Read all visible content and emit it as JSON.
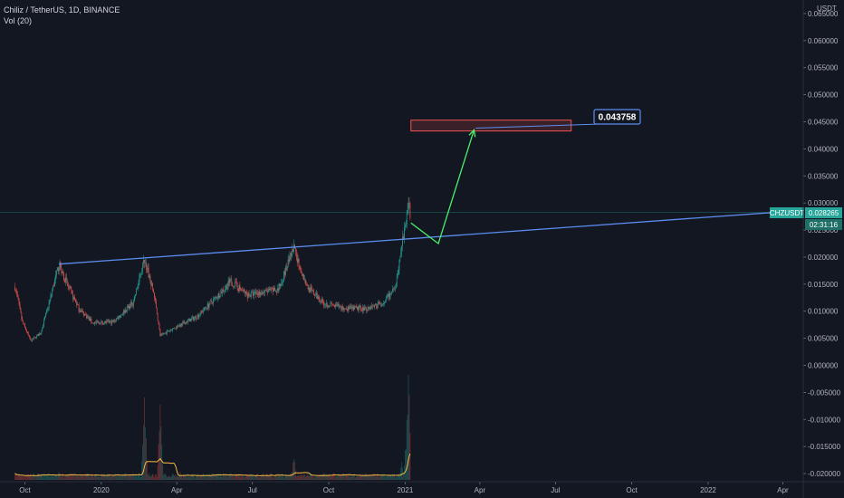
{
  "legend": {
    "symbol_line": "Chiliz / TetherUS, 1D, BINANCE",
    "volume_line": "Vol (20)"
  },
  "price_axis": {
    "currency": "USDT",
    "ticks": [
      "0.065000",
      "0.060000",
      "0.055000",
      "0.050000",
      "0.045000",
      "0.040000",
      "0.035000",
      "0.030000",
      "0.025000",
      "0.020000",
      "0.015000",
      "0.010000",
      "0.005000",
      "0.000000",
      "-0.005000",
      "-0.010000",
      "-0.015000",
      "-0.020000"
    ]
  },
  "time_axis": {
    "ticks": [
      "Oct",
      "2020",
      "Apr",
      "Jul",
      "Oct",
      "2021",
      "Apr",
      "Jul",
      "Oct",
      "2022",
      "Apr"
    ]
  },
  "badges": {
    "symbol": "CHZUSDT",
    "last_price": "0.028265",
    "countdown": "02:31:16"
  },
  "annotation": {
    "target_label": "0.043758"
  },
  "colors": {
    "background": "#131722",
    "up": "#26a69a",
    "down": "#ef5350",
    "trendline": "#5b8def",
    "projection_arrow": "#4cef6a",
    "target_zone": "#ef5350",
    "volume_ma": "#f5b942"
  },
  "chart_data": {
    "type": "candlestick",
    "title": "Chiliz / TetherUS, 1D, BINANCE",
    "ylabel": "USDT",
    "ylim": [
      -0.0215,
      0.0675
    ],
    "x_range": [
      "2019-09-01",
      "2022-05-01"
    ],
    "last_price": 0.028265,
    "price_path": [
      [
        "2019-09-19",
        0.0145
      ],
      [
        "2019-09-28",
        0.008
      ],
      [
        "2019-10-08",
        0.0045
      ],
      [
        "2019-10-20",
        0.006
      ],
      [
        "2019-10-31",
        0.012
      ],
      [
        "2019-11-11",
        0.0187
      ],
      [
        "2019-11-22",
        0.0145
      ],
      [
        "2019-12-05",
        0.0105
      ],
      [
        "2019-12-22",
        0.0078
      ],
      [
        "2020-01-15",
        0.008
      ],
      [
        "2020-02-08",
        0.0115
      ],
      [
        "2020-02-22",
        0.0195
      ],
      [
        "2020-03-04",
        0.0135
      ],
      [
        "2020-03-12",
        0.0055
      ],
      [
        "2020-03-30",
        0.007
      ],
      [
        "2020-04-25",
        0.009
      ],
      [
        "2020-05-18",
        0.0125
      ],
      [
        "2020-06-05",
        0.0155
      ],
      [
        "2020-06-25",
        0.013
      ],
      [
        "2020-07-15",
        0.0135
      ],
      [
        "2020-08-01",
        0.014
      ],
      [
        "2020-08-20",
        0.0215
      ],
      [
        "2020-09-05",
        0.0145
      ],
      [
        "2020-09-25",
        0.0115
      ],
      [
        "2020-10-20",
        0.0105
      ],
      [
        "2020-11-15",
        0.0105
      ],
      [
        "2020-12-05",
        0.0115
      ],
      [
        "2020-12-20",
        0.014
      ],
      [
        "2020-12-28",
        0.022
      ],
      [
        "2021-01-05",
        0.029
      ],
      [
        "2021-01-07",
        0.0283
      ]
    ],
    "volume_spikes": [
      [
        "2019-09-19",
        0.06
      ],
      [
        "2019-11-11",
        0.08
      ],
      [
        "2020-02-22",
        0.95
      ],
      [
        "2020-03-12",
        0.65
      ],
      [
        "2020-04-05",
        0.07
      ],
      [
        "2020-06-05",
        0.06
      ],
      [
        "2020-08-20",
        0.2
      ],
      [
        "2020-12-28",
        0.18
      ],
      [
        "2021-01-02",
        0.35
      ],
      [
        "2021-01-05",
        1.0
      ]
    ],
    "trendline": [
      [
        "2019-11-11",
        0.0187
      ],
      [
        "2022-04-10",
        0.0282
      ]
    ],
    "projection": [
      [
        "2021-01-08",
        0.0263
      ],
      [
        "2021-02-10",
        0.0225
      ],
      [
        "2021-03-25",
        0.0435
      ]
    ],
    "target_zone": {
      "start": "2021-01-08",
      "end": "2021-07-20",
      "low": 0.0433,
      "high": 0.0453
    },
    "target_value": 0.043758
  }
}
